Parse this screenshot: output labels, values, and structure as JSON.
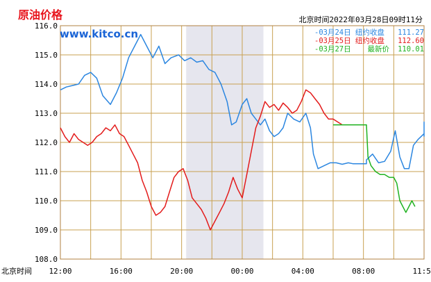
{
  "header": {
    "title": "原油价格",
    "site": "www.kitco.cn",
    "time_label": "北京时间2022年03月28日09时11分"
  },
  "colors": {
    "grid": "#c8a050",
    "shade": "#e6e6ee",
    "frame": "#b08040"
  },
  "chart_data": {
    "type": "line",
    "ylim": [
      108.0,
      116.0
    ],
    "ytick_labels": [
      "116.0",
      "115.0",
      "114.0",
      "113.0",
      "112.0",
      "111.0",
      "110.0",
      "109.0",
      "108.0"
    ],
    "x_prefix_label": "北京时间",
    "xtick_labels": [
      "12:00",
      "16:00",
      "20:00",
      "00:00",
      "04:00",
      "08:00",
      "11:59"
    ],
    "x_range_hours": [
      0,
      24
    ],
    "shaded_region_hours": [
      8.3,
      13.4
    ],
    "grid": true,
    "legend_position": "top-right",
    "series": [
      {
        "name": "03月24日  纽约收盘",
        "value_label": "111.27",
        "color": "#2b86e0",
        "points": [
          [
            0.0,
            113.8
          ],
          [
            0.4,
            113.9
          ],
          [
            0.8,
            113.95
          ],
          [
            1.2,
            114.0
          ],
          [
            1.6,
            114.3
          ],
          [
            2.0,
            114.4
          ],
          [
            2.4,
            114.2
          ],
          [
            2.8,
            113.6
          ],
          [
            3.3,
            113.3
          ],
          [
            3.7,
            113.7
          ],
          [
            4.1,
            114.2
          ],
          [
            4.5,
            114.9
          ],
          [
            4.9,
            115.3
          ],
          [
            5.3,
            115.7
          ],
          [
            5.7,
            115.3
          ],
          [
            6.1,
            114.9
          ],
          [
            6.5,
            115.3
          ],
          [
            6.9,
            114.7
          ],
          [
            7.3,
            114.9
          ],
          [
            7.8,
            115.0
          ],
          [
            8.2,
            114.8
          ],
          [
            8.6,
            114.9
          ],
          [
            9.0,
            114.75
          ],
          [
            9.4,
            114.8
          ],
          [
            9.8,
            114.5
          ],
          [
            10.2,
            114.4
          ],
          [
            10.6,
            114.0
          ],
          [
            11.0,
            113.4
          ],
          [
            11.3,
            112.6
          ],
          [
            11.6,
            112.7
          ],
          [
            12.0,
            113.3
          ],
          [
            12.3,
            113.5
          ],
          [
            12.6,
            113.0
          ],
          [
            12.9,
            112.8
          ],
          [
            13.2,
            112.6
          ],
          [
            13.5,
            112.8
          ],
          [
            13.8,
            112.4
          ],
          [
            14.1,
            112.2
          ],
          [
            14.4,
            112.3
          ],
          [
            14.7,
            112.5
          ],
          [
            15.0,
            113.0
          ],
          [
            15.4,
            112.8
          ],
          [
            15.8,
            112.7
          ],
          [
            16.2,
            113.0
          ],
          [
            16.5,
            112.5
          ],
          [
            16.7,
            111.6
          ],
          [
            17.0,
            111.1
          ],
          [
            17.4,
            111.2
          ],
          [
            17.8,
            111.3
          ],
          [
            18.2,
            111.3
          ],
          [
            18.6,
            111.25
          ],
          [
            19.0,
            111.3
          ],
          [
            19.3,
            111.27
          ],
          [
            20.2,
            111.27
          ],
          [
            20.2,
            111.4
          ],
          [
            20.6,
            111.6
          ],
          [
            21.0,
            111.3
          ],
          [
            21.4,
            111.35
          ],
          [
            21.8,
            111.7
          ],
          [
            22.1,
            112.4
          ],
          [
            22.4,
            111.5
          ],
          [
            22.7,
            111.1
          ],
          [
            23.0,
            111.1
          ],
          [
            23.3,
            111.9
          ],
          [
            23.6,
            112.1
          ],
          [
            24.0,
            112.3
          ],
          [
            24.4,
            112.6
          ],
          [
            24.8,
            112.7
          ],
          [
            25.1,
            112.2
          ]
        ]
      },
      {
        "name": "03月25日  纽约收盘",
        "value_label": "112.60",
        "color": "#e31b1b",
        "points": [
          [
            0.0,
            112.5
          ],
          [
            0.3,
            112.2
          ],
          [
            0.6,
            112.0
          ],
          [
            0.9,
            112.3
          ],
          [
            1.2,
            112.1
          ],
          [
            1.5,
            112.0
          ],
          [
            1.8,
            111.9
          ],
          [
            2.1,
            112.0
          ],
          [
            2.4,
            112.2
          ],
          [
            2.7,
            112.3
          ],
          [
            3.0,
            112.5
          ],
          [
            3.3,
            112.4
          ],
          [
            3.6,
            112.6
          ],
          [
            3.9,
            112.3
          ],
          [
            4.2,
            112.2
          ],
          [
            4.5,
            111.9
          ],
          [
            4.8,
            111.6
          ],
          [
            5.1,
            111.3
          ],
          [
            5.4,
            110.7
          ],
          [
            5.7,
            110.3
          ],
          [
            6.0,
            109.8
          ],
          [
            6.3,
            109.5
          ],
          [
            6.6,
            109.6
          ],
          [
            6.9,
            109.8
          ],
          [
            7.2,
            110.3
          ],
          [
            7.5,
            110.8
          ],
          [
            7.8,
            111.0
          ],
          [
            8.1,
            111.1
          ],
          [
            8.4,
            110.7
          ],
          [
            8.7,
            110.1
          ],
          [
            9.0,
            109.9
          ],
          [
            9.3,
            109.7
          ],
          [
            9.6,
            109.4
          ],
          [
            9.9,
            109.0
          ],
          [
            10.2,
            109.3
          ],
          [
            10.5,
            109.6
          ],
          [
            10.8,
            109.9
          ],
          [
            11.1,
            110.3
          ],
          [
            11.4,
            110.8
          ],
          [
            11.7,
            110.4
          ],
          [
            12.0,
            110.1
          ],
          [
            12.3,
            110.9
          ],
          [
            12.6,
            111.7
          ],
          [
            12.9,
            112.5
          ],
          [
            13.2,
            112.9
          ],
          [
            13.5,
            113.4
          ],
          [
            13.8,
            113.2
          ],
          [
            14.1,
            113.3
          ],
          [
            14.4,
            113.1
          ],
          [
            14.7,
            113.35
          ],
          [
            15.0,
            113.2
          ],
          [
            15.3,
            113.0
          ],
          [
            15.6,
            113.1
          ],
          [
            15.9,
            113.4
          ],
          [
            16.2,
            113.8
          ],
          [
            16.5,
            113.7
          ],
          [
            16.8,
            113.5
          ],
          [
            17.1,
            113.3
          ],
          [
            17.4,
            113.0
          ],
          [
            17.7,
            112.8
          ],
          [
            18.0,
            112.8
          ],
          [
            18.3,
            112.7
          ],
          [
            18.6,
            112.6
          ],
          [
            18.9,
            112.6
          ],
          [
            19.2,
            112.6
          ]
        ]
      },
      {
        "name": "03月27日",
        "extra_label": "最新价",
        "value_label": "110.01",
        "color": "#1fb21f",
        "points": [
          [
            18.0,
            112.6
          ],
          [
            20.2,
            112.6
          ],
          [
            20.3,
            111.5
          ],
          [
            20.5,
            111.2
          ],
          [
            20.8,
            111.0
          ],
          [
            21.1,
            110.9
          ],
          [
            21.4,
            110.9
          ],
          [
            21.7,
            110.8
          ],
          [
            22.0,
            110.8
          ],
          [
            22.2,
            110.6
          ],
          [
            22.4,
            110.0
          ],
          [
            22.6,
            109.8
          ],
          [
            22.8,
            109.6
          ],
          [
            23.0,
            109.8
          ],
          [
            23.2,
            110.0
          ],
          [
            23.4,
            109.8
          ]
        ]
      }
    ]
  }
}
